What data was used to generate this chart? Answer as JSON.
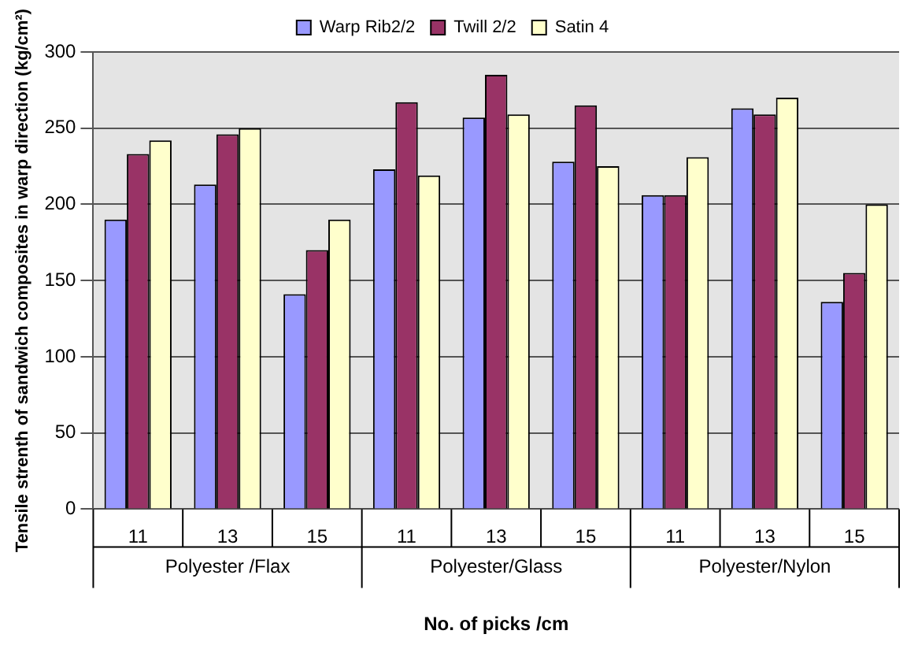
{
  "chart_data": {
    "type": "bar",
    "ylabel": "Tensile strenth of sandwich composites in warp direction (kg/cm²)",
    "xlabel": "No. of picks /cm",
    "categories": [
      "11",
      "13",
      "15",
      "11",
      "13",
      "15",
      "11",
      "13",
      "15"
    ],
    "series": [
      {
        "name": "Warp Rib2/2",
        "color": "#9999ff",
        "values": [
          190,
          213,
          141,
          223,
          257,
          228,
          206,
          263,
          136
        ]
      },
      {
        "name": "Twill 2/2",
        "color": "#993366",
        "values": [
          233,
          246,
          170,
          267,
          285,
          265,
          206,
          259,
          155
        ]
      },
      {
        "name": "Satin 4",
        "color": "#ffffcc",
        "values": [
          242,
          250,
          190,
          219,
          259,
          225,
          231,
          270,
          200
        ]
      }
    ],
    "annotations": [
      "Polyester /Flax",
      "Polyester/Glass",
      "Polyester/Nylon"
    ],
    "ylim": [
      0,
      300
    ],
    "yticks": [
      0,
      50,
      100,
      150,
      200,
      250,
      300
    ],
    "grid": "y",
    "legend": "top"
  }
}
